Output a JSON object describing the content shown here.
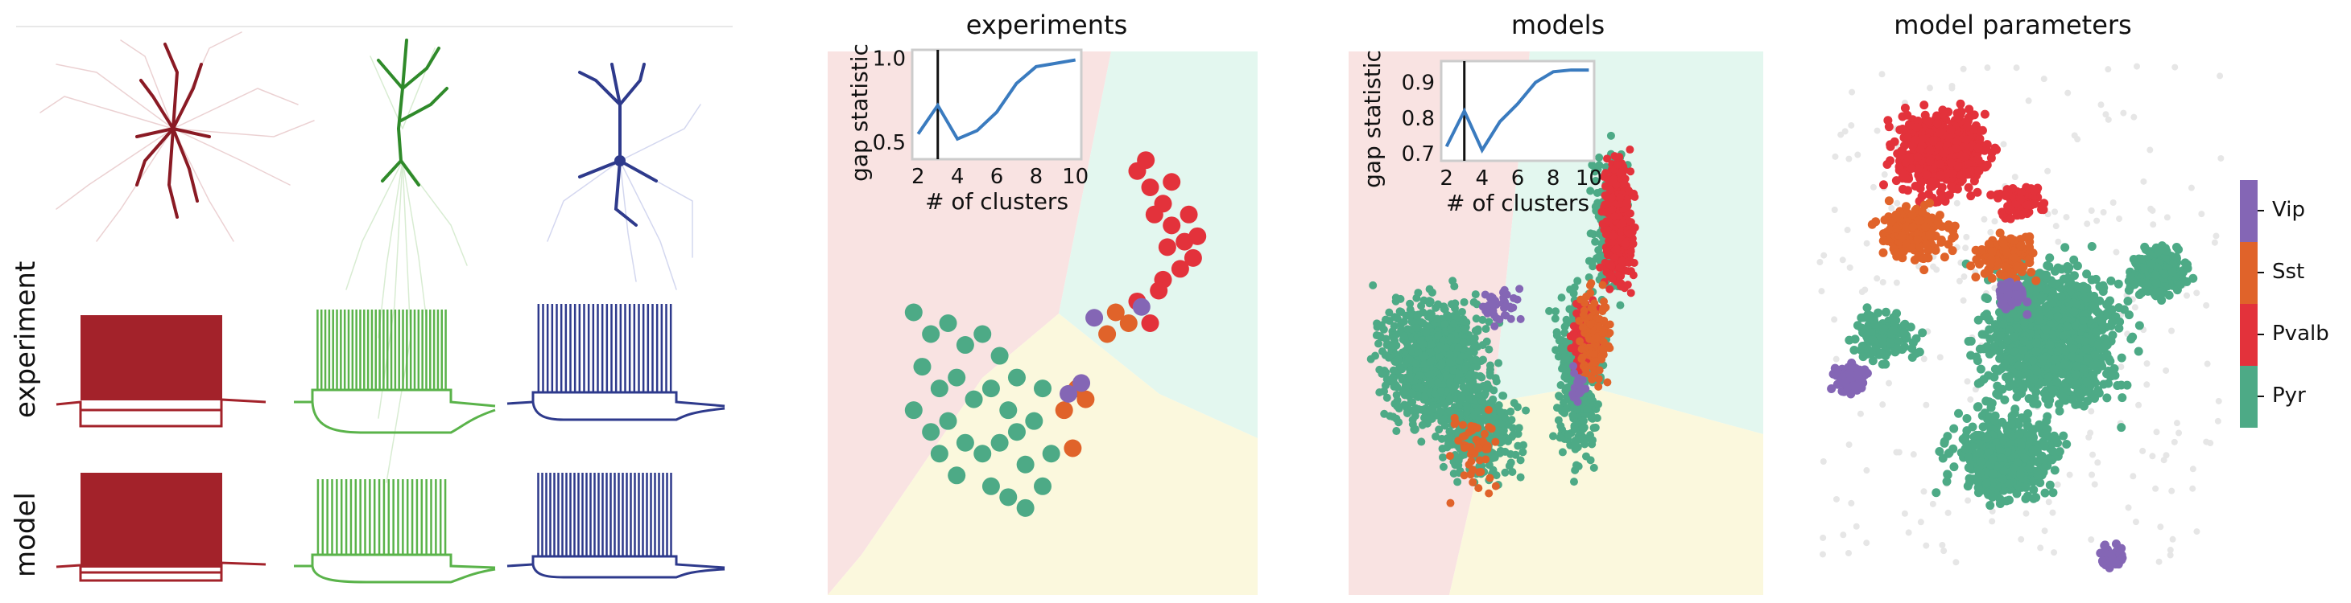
{
  "panel_a": {
    "row_labels": [
      "experiment",
      "model"
    ],
    "colors": {
      "pyr": "#a3222a",
      "l5": "#5ab34a",
      "blue": "#2e3a8c"
    }
  },
  "chart_data": [
    {
      "type": "scatter",
      "title": "experiments",
      "regions": [
        {
          "color": "#f9e3e2",
          "label": ""
        },
        {
          "color": "#e3f7ef",
          "label": ""
        },
        {
          "color": "#fbf8dd",
          "label": ""
        }
      ],
      "series": [
        {
          "name": "Pvalb",
          "color": "#e3323b",
          "points": [
            [
              0.72,
              0.22
            ],
            [
              0.75,
              0.25
            ],
            [
              0.78,
              0.28
            ],
            [
              0.8,
              0.32
            ],
            [
              0.83,
              0.35
            ],
            [
              0.85,
              0.38
            ],
            [
              0.82,
              0.4
            ],
            [
              0.78,
              0.42
            ],
            [
              0.76,
              0.3
            ],
            [
              0.74,
              0.2
            ],
            [
              0.8,
              0.24
            ],
            [
              0.84,
              0.3
            ],
            [
              0.86,
              0.34
            ],
            [
              0.79,
              0.36
            ],
            [
              0.77,
              0.44
            ],
            [
              0.72,
              0.46
            ],
            [
              0.75,
              0.5
            ]
          ]
        },
        {
          "name": "Sst",
          "color": "#e0632a",
          "points": [
            [
              0.67,
              0.48
            ],
            [
              0.7,
              0.5
            ],
            [
              0.65,
              0.52
            ],
            [
              0.58,
              0.62
            ],
            [
              0.55,
              0.66
            ],
            [
              0.6,
              0.64
            ],
            [
              0.57,
              0.73
            ]
          ]
        },
        {
          "name": "Vip",
          "color": "#8466b5",
          "points": [
            [
              0.73,
              0.47
            ],
            [
              0.62,
              0.49
            ],
            [
              0.56,
              0.63
            ],
            [
              0.59,
              0.61
            ]
          ]
        },
        {
          "name": "Pyr",
          "color": "#4daa86",
          "points": [
            [
              0.2,
              0.48
            ],
            [
              0.24,
              0.52
            ],
            [
              0.28,
              0.5
            ],
            [
              0.32,
              0.54
            ],
            [
              0.36,
              0.52
            ],
            [
              0.4,
              0.56
            ],
            [
              0.22,
              0.58
            ],
            [
              0.26,
              0.62
            ],
            [
              0.3,
              0.6
            ],
            [
              0.34,
              0.64
            ],
            [
              0.38,
              0.62
            ],
            [
              0.42,
              0.66
            ],
            [
              0.2,
              0.66
            ],
            [
              0.24,
              0.7
            ],
            [
              0.28,
              0.68
            ],
            [
              0.32,
              0.72
            ],
            [
              0.36,
              0.74
            ],
            [
              0.4,
              0.72
            ],
            [
              0.44,
              0.7
            ],
            [
              0.46,
              0.76
            ],
            [
              0.38,
              0.8
            ],
            [
              0.42,
              0.82
            ],
            [
              0.46,
              0.84
            ],
            [
              0.5,
              0.8
            ],
            [
              0.52,
              0.74
            ],
            [
              0.3,
              0.78
            ],
            [
              0.26,
              0.74
            ],
            [
              0.48,
              0.68
            ],
            [
              0.44,
              0.6
            ],
            [
              0.5,
              0.62
            ]
          ]
        }
      ],
      "inset": {
        "xlabel": "# of clusters",
        "ylabel": "gap statistic",
        "xticks": [
          "2",
          "4",
          "6",
          "8",
          "10"
        ],
        "yticks": [
          "0.5",
          "1.0"
        ],
        "x": [
          2,
          3,
          4,
          5,
          6,
          7,
          8,
          9,
          10
        ],
        "y": [
          0.55,
          0.72,
          0.52,
          0.57,
          0.68,
          0.85,
          0.95,
          0.97,
          0.99
        ],
        "ylim": [
          0.4,
          1.05
        ],
        "marker_x": 3
      }
    },
    {
      "type": "scatter",
      "title": "models",
      "inset": {
        "xlabel": "# of clusters",
        "ylabel": "gap statistic",
        "xticks": [
          "2",
          "4",
          "6",
          "8",
          "10"
        ],
        "yticks": [
          "0.7",
          "0.8",
          "0.9"
        ],
        "x": [
          2,
          3,
          4,
          5,
          6,
          7,
          8,
          9,
          10
        ],
        "y": [
          0.72,
          0.82,
          0.71,
          0.79,
          0.84,
          0.9,
          0.93,
          0.935,
          0.935
        ],
        "ylim": [
          0.68,
          0.96
        ],
        "marker_x": 3
      }
    },
    {
      "type": "scatter",
      "title": "model parameters",
      "legend": {
        "title": "",
        "position": "right",
        "entries": [
          "Vip",
          "Sst",
          "Pvalb",
          "Pyr"
        ]
      }
    }
  ],
  "colors": {
    "vip": "#8466b5",
    "sst": "#e0632a",
    "pvalb": "#e3323b",
    "pyr": "#4daa86"
  }
}
